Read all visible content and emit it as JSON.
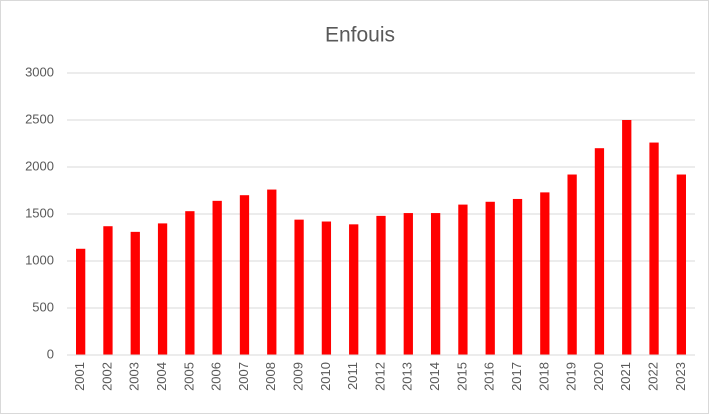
{
  "chart_data": {
    "type": "bar",
    "title": "Enfouis",
    "categories": [
      "2001",
      "2002",
      "2003",
      "2004",
      "2005",
      "2006",
      "2007",
      "2008",
      "2009",
      "2010",
      "2011",
      "2012",
      "2013",
      "2014",
      "2015",
      "2016",
      "2017",
      "2018",
      "2019",
      "2020",
      "2021",
      "2022",
      "2023"
    ],
    "values": [
      1130,
      1370,
      1310,
      1400,
      1530,
      1640,
      1700,
      1760,
      1440,
      1420,
      1390,
      1480,
      1510,
      1510,
      1600,
      1630,
      1660,
      1730,
      1920,
      2200,
      2500,
      2260,
      1920
    ],
    "color": "#ff0000",
    "ylim": [
      0,
      3000
    ],
    "yticks": [
      0,
      500,
      1000,
      1500,
      2000,
      2500,
      3000
    ],
    "grid": true
  }
}
